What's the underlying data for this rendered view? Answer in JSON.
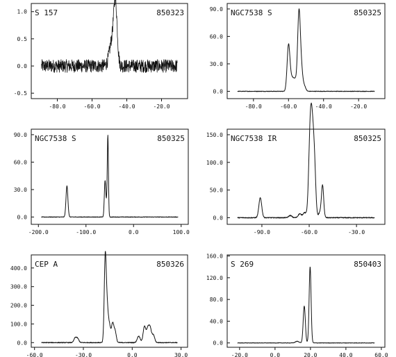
{
  "chart_data": [
    {
      "type": "line",
      "object_label": "S 157",
      "date_label": "850323",
      "xlim": [
        -95,
        -5
      ],
      "ylim": [
        -0.6,
        1.15
      ],
      "xticks": [
        -80,
        -60,
        -40,
        -20
      ],
      "yticks": [
        1.0,
        0.5,
        0.0,
        -0.5
      ],
      "xticklabels": [
        "-80.0",
        "-60.0",
        "-40.0",
        "-20.0"
      ],
      "yticklabels": [
        "1.0",
        "0.5",
        "0.0",
        "-0.5"
      ],
      "noise_amplitude": 0.12,
      "peaks": [
        {
          "x": -46.5,
          "y": 1.05,
          "w": 1.0
        },
        {
          "x": -48.5,
          "y": 0.45,
          "w": 1.5
        }
      ]
    },
    {
      "type": "line",
      "object_label": "NGC7538 S",
      "date_label": "850325",
      "xlim": [
        -95,
        -5
      ],
      "ylim": [
        -8,
        96
      ],
      "xticks": [
        -80,
        -60,
        -40,
        -20
      ],
      "yticks": [
        90,
        60,
        30,
        0
      ],
      "xticklabels": [
        "-80.0",
        "-60.0",
        "-40.0",
        "-20.0"
      ],
      "yticklabels": [
        "90.0",
        "60.0",
        "30.0",
        "0.0"
      ],
      "noise_amplitude": 0.3,
      "peaks": [
        {
          "x": -60.0,
          "y": 50,
          "w": 0.8
        },
        {
          "x": -58.0,
          "y": 14,
          "w": 1.0
        },
        {
          "x": -56.2,
          "y": 10,
          "w": 0.8
        },
        {
          "x": -54.0,
          "y": 88,
          "w": 0.8
        },
        {
          "x": -52.5,
          "y": 18,
          "w": 0.7
        },
        {
          "x": -51.0,
          "y": 6,
          "w": 0.8
        }
      ]
    },
    {
      "type": "line",
      "object_label": "NGC7538 S",
      "date_label": "850325",
      "xlim": [
        -215,
        115
      ],
      "ylim": [
        -8,
        96
      ],
      "xticks": [
        -200,
        -100,
        0,
        100
      ],
      "yticks": [
        90,
        60,
        30,
        0
      ],
      "xticklabels": [
        "-200.0",
        "-100.0",
        "0.0",
        "100.0"
      ],
      "yticklabels": [
        "90.0",
        "60.0",
        "30.0",
        "0.0"
      ],
      "noise_amplitude": 0.3,
      "peaks": [
        {
          "x": -140,
          "y": 34,
          "w": 2.0
        },
        {
          "x": -60,
          "y": 38,
          "w": 1.5
        },
        {
          "x": -57,
          "y": 12,
          "w": 1.5
        },
        {
          "x": -54,
          "y": 88,
          "w": 1.2
        }
      ]
    },
    {
      "type": "line",
      "object_label": "NGC7538 IR",
      "date_label": "850325",
      "xlim": [
        -112,
        -12
      ],
      "ylim": [
        -12,
        160
      ],
      "xticks": [
        -90,
        -60,
        -30
      ],
      "yticks": [
        150,
        100,
        50,
        0
      ],
      "xticklabels": [
        "-90.0",
        "-60.0",
        "-30.0"
      ],
      "yticklabels": [
        "150.0",
        "100.0",
        "50.0",
        "0.0"
      ],
      "noise_amplitude": 0.8,
      "peaks": [
        {
          "x": -91,
          "y": 36,
          "w": 0.9
        },
        {
          "x": -72,
          "y": 4,
          "w": 1.0
        },
        {
          "x": -66,
          "y": 7,
          "w": 1.0
        },
        {
          "x": -63,
          "y": 9,
          "w": 1.0
        },
        {
          "x": -59.3,
          "y": 150,
          "w": 1.0
        },
        {
          "x": -57.8,
          "y": 120,
          "w": 1.0
        },
        {
          "x": -56.5,
          "y": 60,
          "w": 0.8
        },
        {
          "x": -53,
          "y": 10,
          "w": 1.0
        },
        {
          "x": -51.5,
          "y": 56,
          "w": 0.7
        }
      ]
    },
    {
      "type": "line",
      "object_label": "CEP A",
      "date_label": "850326",
      "xlim": [
        -62,
        34
      ],
      "ylim": [
        -25,
        470
      ],
      "xticks": [
        -60,
        -30,
        0,
        30
      ],
      "yticks": [
        400,
        300,
        200,
        100,
        0
      ],
      "xticklabels": [
        "-60.0",
        "-30.0",
        "0.0",
        "30.0"
      ],
      "yticklabels": [
        "400.0",
        "300.0",
        "200.0",
        "100.0",
        "0.0"
      ],
      "noise_amplitude": 2.0,
      "peaks": [
        {
          "x": -35,
          "y": 25,
          "w": 0.8
        },
        {
          "x": -33.5,
          "y": 20,
          "w": 0.8
        },
        {
          "x": -16.6,
          "y": 430,
          "w": 0.6
        },
        {
          "x": -15.5,
          "y": 180,
          "w": 0.7
        },
        {
          "x": -14,
          "y": 90,
          "w": 0.8
        },
        {
          "x": -12,
          "y": 100,
          "w": 0.7
        },
        {
          "x": -10.5,
          "y": 60,
          "w": 0.7
        },
        {
          "x": 4,
          "y": 35,
          "w": 0.9
        },
        {
          "x": 7.5,
          "y": 85,
          "w": 0.8
        },
        {
          "x": 9.5,
          "y": 70,
          "w": 0.8
        },
        {
          "x": 11,
          "y": 75,
          "w": 0.8
        },
        {
          "x": 13,
          "y": 40,
          "w": 0.8
        }
      ]
    },
    {
      "type": "line",
      "object_label": "S 269",
      "date_label": "850403",
      "xlim": [
        -27,
        62
      ],
      "ylim": [
        -8,
        162
      ],
      "xticks": [
        -20,
        0,
        20,
        40,
        60
      ],
      "yticks": [
        160,
        120,
        80,
        40,
        0
      ],
      "xticklabels": [
        "-20.0",
        "0.0",
        "20.0",
        "40.0",
        "60.0"
      ],
      "yticklabels": [
        "160.0",
        "120.0",
        "80.0",
        "40.0",
        "0.0"
      ],
      "noise_amplitude": 0.4,
      "peaks": [
        {
          "x": 16.5,
          "y": 68,
          "w": 0.6
        },
        {
          "x": 19.8,
          "y": 140,
          "w": 0.55
        },
        {
          "x": 12.5,
          "y": 3,
          "w": 1.0
        }
      ]
    }
  ]
}
